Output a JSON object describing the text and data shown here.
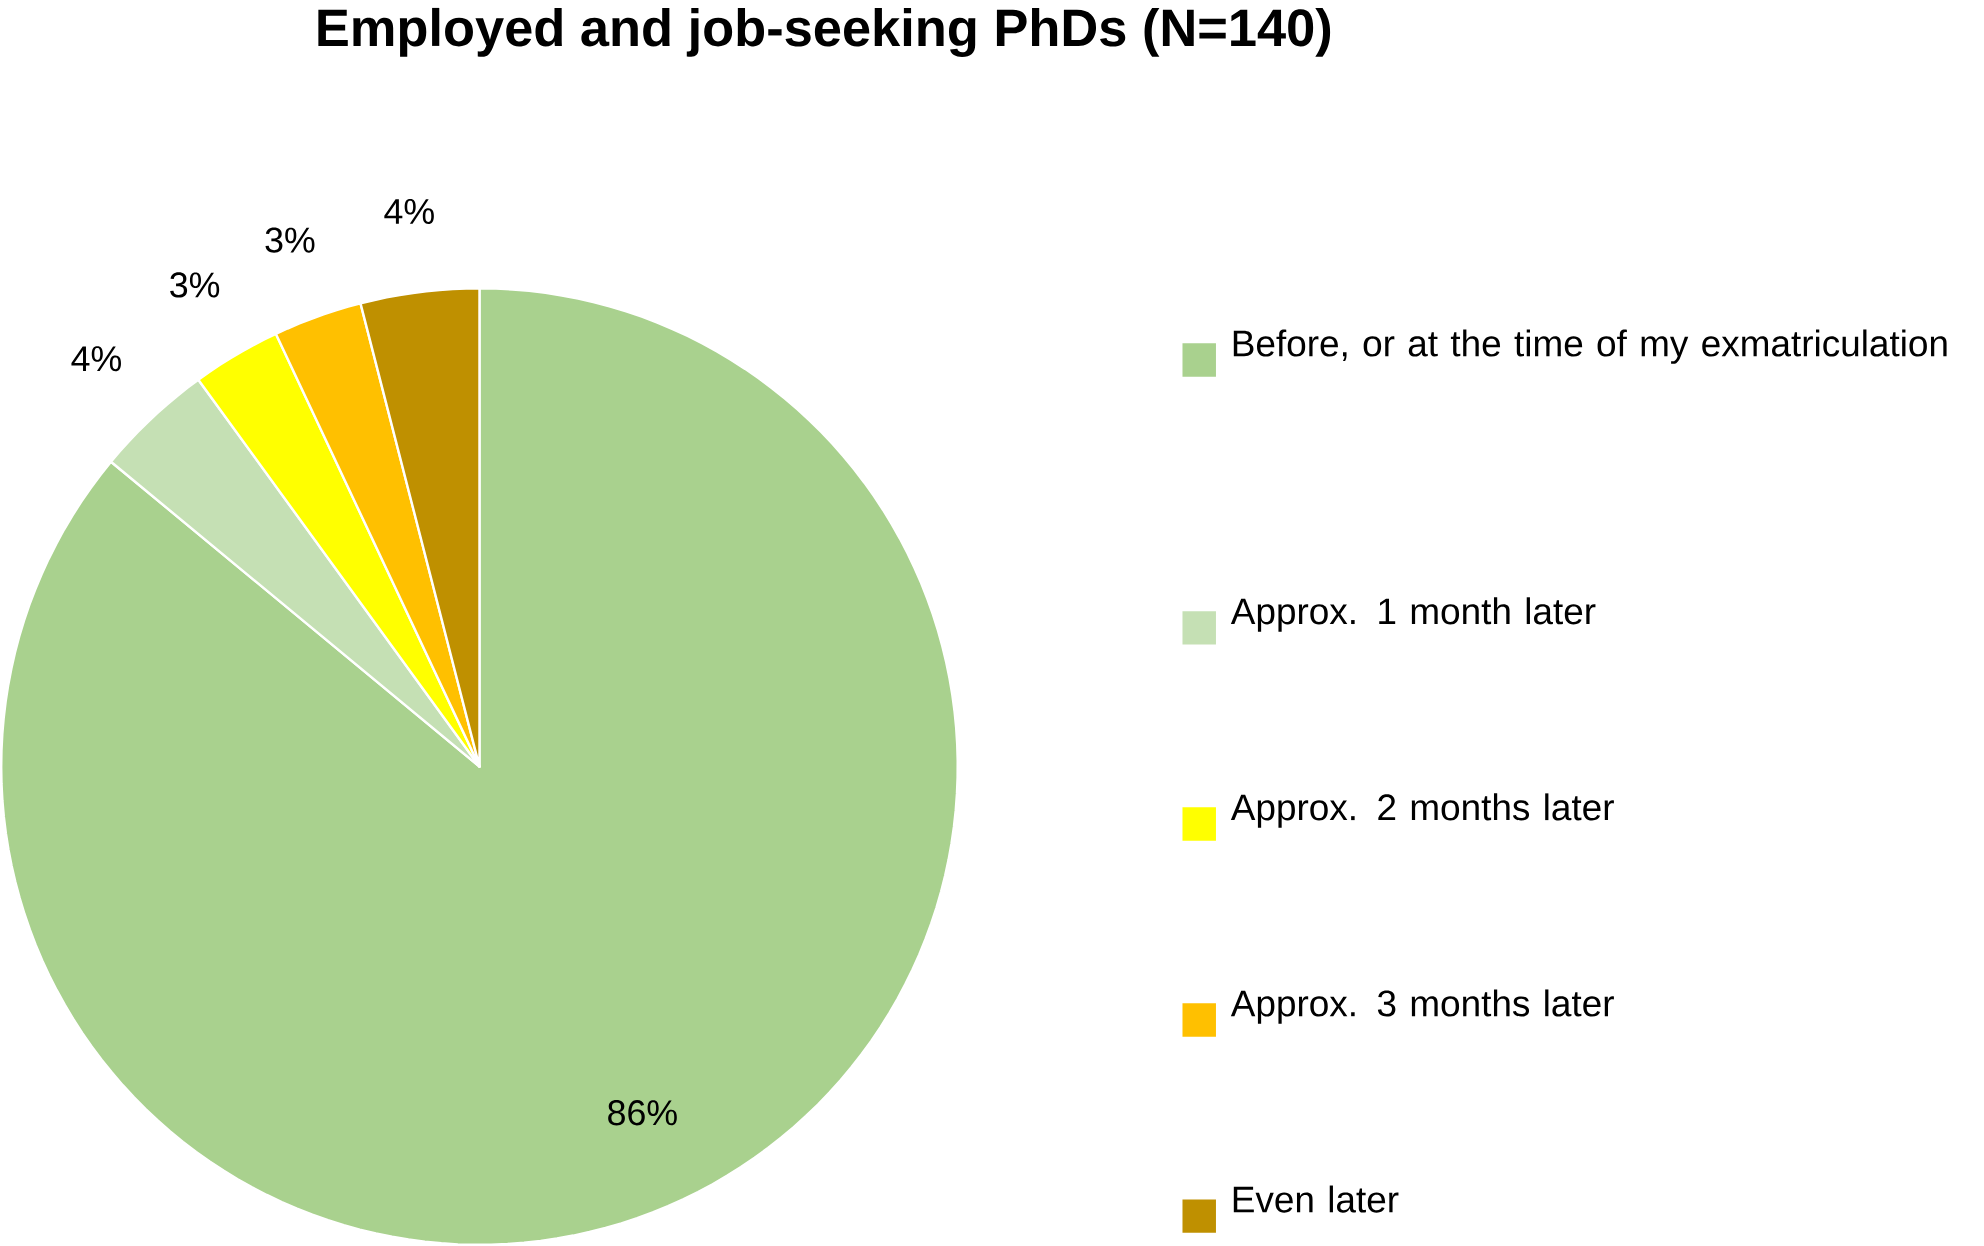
{
  "chart_data": {
    "type": "pie",
    "title": "Employed and job-seeking PhDs (N=140)",
    "categories": [
      "Before, or at the time of my exmatriculation",
      "Approx. 1 month later",
      "Approx. 2 months later",
      "Approx. 3 months later",
      "Even later"
    ],
    "values": [
      86,
      4,
      3,
      3,
      4
    ],
    "colors": [
      "#a9d18e",
      "#c5e0b4",
      "#ffff00",
      "#ffc000",
      "#bf9000"
    ],
    "value_labels": [
      "86%",
      "4%",
      "3%",
      "3%",
      "4%"
    ],
    "legend": "right"
  }
}
